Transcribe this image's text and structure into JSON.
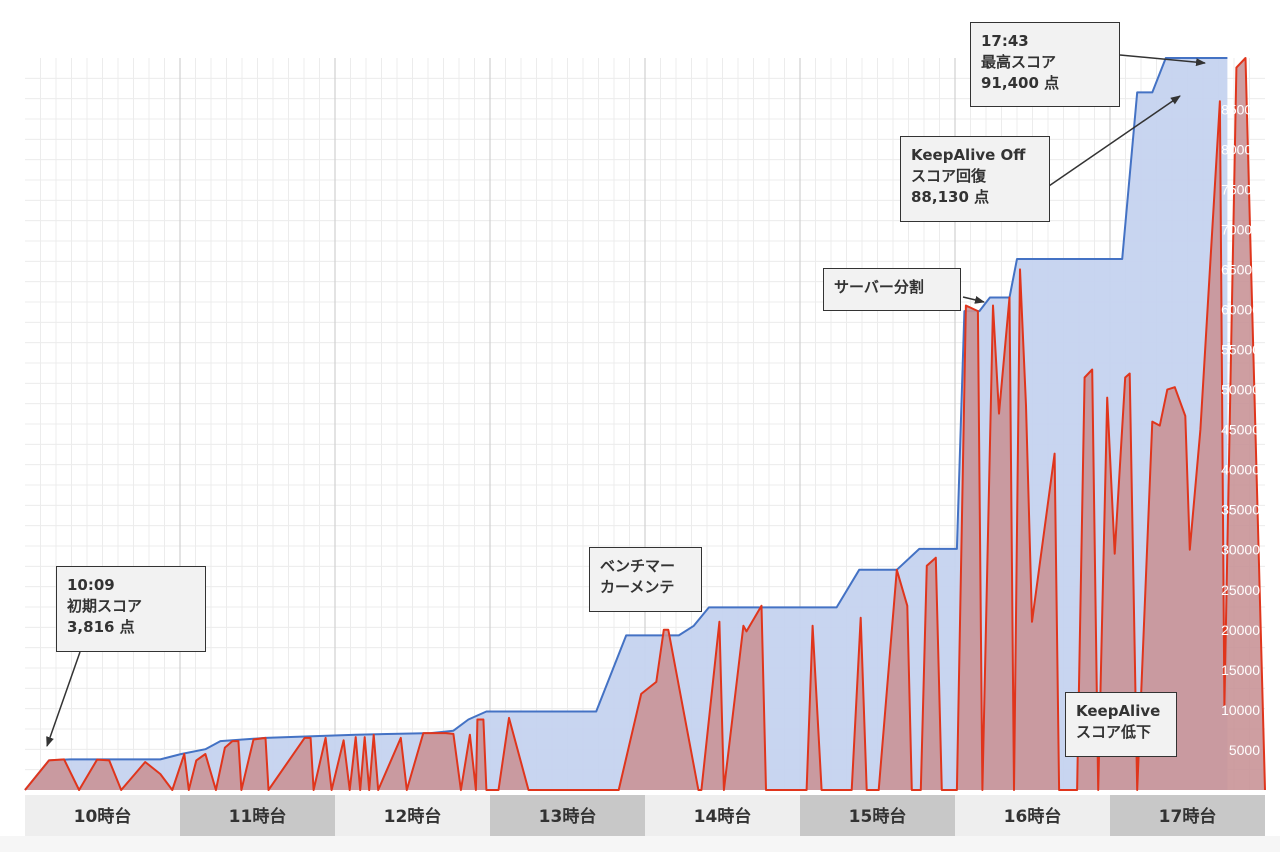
{
  "chart_data": {
    "type": "area",
    "x_categories": [
      "10時台",
      "11時台",
      "12時台",
      "13時台",
      "14時台",
      "15時台",
      "16時台",
      "17時台"
    ],
    "y_ticks": [
      5000,
      10000,
      15000,
      20000,
      25000,
      30000,
      35000,
      40000,
      45000,
      50000,
      55000,
      60000,
      65000,
      70000,
      75000,
      80000,
      85000
    ],
    "ylim": [
      0,
      91400
    ],
    "grid": true,
    "series": [
      {
        "color": "#4472c4",
        "fill": "#c5d3ef",
        "points": [
          [
            10.0,
            0
          ],
          [
            10.16,
            3700
          ],
          [
            10.3,
            3816
          ],
          [
            10.9,
            3816
          ],
          [
            11.04,
            4500
          ],
          [
            11.2,
            5100
          ],
          [
            11.3,
            6100
          ],
          [
            11.6,
            6500
          ],
          [
            12.2,
            6900
          ],
          [
            12.7,
            7100
          ],
          [
            12.85,
            7400
          ],
          [
            12.95,
            8800
          ],
          [
            13.07,
            9800
          ],
          [
            13.8,
            9800
          ],
          [
            14.0,
            19300
          ],
          [
            14.35,
            19300
          ],
          [
            14.45,
            20500
          ],
          [
            14.55,
            22800
          ],
          [
            15.1,
            22800
          ],
          [
            15.4,
            22800
          ],
          [
            15.55,
            27500
          ],
          [
            15.8,
            27500
          ],
          [
            15.95,
            30100
          ],
          [
            16.2,
            30100
          ],
          [
            16.25,
            59800
          ],
          [
            16.35,
            59800
          ],
          [
            16.42,
            61500
          ],
          [
            16.55,
            61500
          ],
          [
            16.6,
            66300
          ],
          [
            17.1,
            66300
          ],
          [
            17.3,
            66300
          ],
          [
            17.4,
            87100
          ],
          [
            17.5,
            87100
          ],
          [
            17.59,
            91400
          ],
          [
            18.0,
            91400
          ]
        ]
      },
      {
        "color": "#e0351c",
        "fill": "#c99397",
        "points": [
          [
            10.0,
            0
          ],
          [
            10.16,
            3700
          ],
          [
            10.26,
            3816
          ],
          [
            10.36,
            0
          ],
          [
            10.48,
            3800
          ],
          [
            10.56,
            3700
          ],
          [
            10.64,
            0
          ],
          [
            10.8,
            3500
          ],
          [
            10.9,
            2000
          ],
          [
            10.98,
            0
          ],
          [
            11.06,
            4500
          ],
          [
            11.09,
            0
          ],
          [
            11.14,
            3700
          ],
          [
            11.2,
            4500
          ],
          [
            11.27,
            0
          ],
          [
            11.33,
            5300
          ],
          [
            11.38,
            6100
          ],
          [
            11.42,
            6100
          ],
          [
            11.44,
            0
          ],
          [
            11.52,
            6300
          ],
          [
            11.6,
            6500
          ],
          [
            11.62,
            0
          ],
          [
            11.86,
            6500
          ],
          [
            11.9,
            6500
          ],
          [
            11.92,
            0
          ],
          [
            12.0,
            6500
          ],
          [
            12.04,
            0
          ],
          [
            12.12,
            6200
          ],
          [
            12.16,
            0
          ],
          [
            12.2,
            6600
          ],
          [
            12.23,
            0
          ],
          [
            12.26,
            6600
          ],
          [
            12.29,
            0
          ],
          [
            12.32,
            6900
          ],
          [
            12.35,
            0
          ],
          [
            12.5,
            6500
          ],
          [
            12.54,
            0
          ],
          [
            12.65,
            7100
          ],
          [
            12.8,
            7100
          ],
          [
            12.85,
            7000
          ],
          [
            12.9,
            0
          ],
          [
            12.96,
            6900
          ],
          [
            13.0,
            0
          ],
          [
            13.01,
            8800
          ],
          [
            13.05,
            8800
          ],
          [
            13.07,
            0
          ],
          [
            13.15,
            0
          ],
          [
            13.22,
            9000
          ],
          [
            13.35,
            0
          ],
          [
            13.5,
            0
          ],
          [
            13.7,
            0
          ],
          [
            13.95,
            0
          ],
          [
            14.1,
            12000
          ],
          [
            14.2,
            13500
          ],
          [
            14.25,
            20000
          ],
          [
            14.28,
            20000
          ],
          [
            14.48,
            0
          ],
          [
            14.5,
            0
          ],
          [
            14.62,
            21000
          ],
          [
            14.65,
            0
          ],
          [
            14.78,
            20500
          ],
          [
            14.8,
            19800
          ],
          [
            14.9,
            23000
          ],
          [
            14.93,
            0
          ],
          [
            15.06,
            0
          ],
          [
            15.2,
            0
          ],
          [
            15.24,
            20500
          ],
          [
            15.3,
            0
          ],
          [
            15.42,
            0
          ],
          [
            15.5,
            0
          ],
          [
            15.56,
            21500
          ],
          [
            15.6,
            0
          ],
          [
            15.68,
            0
          ],
          [
            15.8,
            27500
          ],
          [
            15.87,
            23000
          ],
          [
            15.9,
            0
          ],
          [
            15.96,
            0
          ],
          [
            16.0,
            28000
          ],
          [
            16.06,
            29000
          ],
          [
            16.1,
            0
          ],
          [
            16.2,
            0
          ],
          [
            16.26,
            60500
          ],
          [
            16.34,
            59800
          ],
          [
            16.37,
            0
          ],
          [
            16.44,
            60500
          ],
          [
            16.48,
            47000
          ],
          [
            16.55,
            61500
          ],
          [
            16.58,
            0
          ],
          [
            16.62,
            65000
          ],
          [
            16.66,
            48000
          ],
          [
            16.7,
            21000
          ],
          [
            16.85,
            42000
          ],
          [
            16.88,
            0
          ],
          [
            17.0,
            0
          ],
          [
            17.05,
            51500
          ],
          [
            17.1,
            52500
          ],
          [
            17.14,
            0
          ],
          [
            17.2,
            49000
          ],
          [
            17.25,
            29500
          ],
          [
            17.32,
            51500
          ],
          [
            17.35,
            52000
          ],
          [
            17.4,
            0
          ],
          [
            17.5,
            46000
          ],
          [
            17.55,
            45500
          ],
          [
            17.6,
            50000
          ],
          [
            17.65,
            50300
          ],
          [
            17.72,
            46700
          ],
          [
            17.75,
            30000
          ],
          [
            17.82,
            45000
          ],
          [
            17.95,
            86000
          ],
          [
            17.98,
            10500
          ],
          [
            18.06,
            90200
          ],
          [
            18.12,
            91400
          ],
          [
            18.25,
            0
          ]
        ]
      }
    ],
    "annotations": [
      {
        "lines": [
          "10:09",
          "初期スコア",
          "3,816 点"
        ]
      },
      {
        "lines": [
          "ベンチマー",
          "カーメンテ"
        ]
      },
      {
        "lines": [
          "サーバー分割"
        ]
      },
      {
        "lines": [
          "KeepAlive Off",
          "スコア回復",
          "88,130 点"
        ]
      },
      {
        "lines": [
          "17:43",
          "最高スコア",
          "91,400 点"
        ]
      },
      {
        "lines": [
          "KeepAlive",
          "スコア低下"
        ]
      }
    ]
  }
}
